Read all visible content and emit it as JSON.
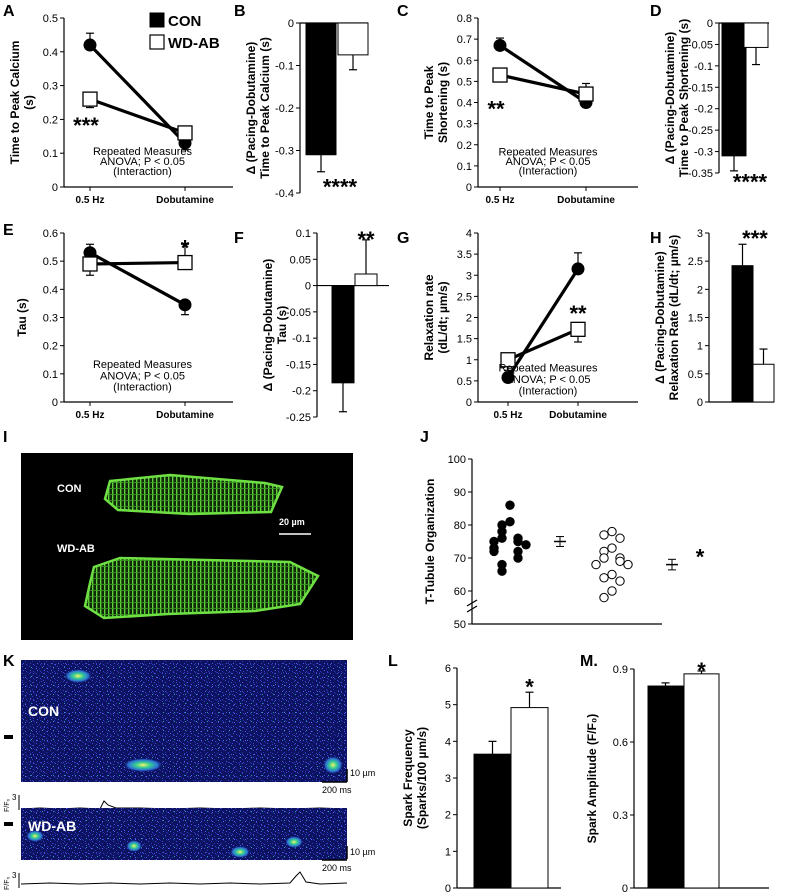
{
  "figure": {
    "legend": [
      {
        "label": "CON",
        "fill": "#000000"
      },
      {
        "label": "WD-AB",
        "fill": "#ffffff"
      }
    ]
  },
  "chart_data": [
    {
      "panel": "A",
      "type": "line",
      "ylabel": [
        "Time to Peak Calcium",
        "(s)"
      ],
      "ylim": [
        0,
        0.5
      ],
      "yticks": [
        "0",
        "0.1",
        "0.2",
        "0.3",
        "0.4",
        "0.5"
      ],
      "categories": [
        "0.5 Hz",
        "Dobutamine"
      ],
      "series": [
        {
          "name": "CON",
          "values": [
            0.42,
            0.13
          ],
          "errors": [
            0.035,
            0.02
          ]
        },
        {
          "name": "WD-AB",
          "values": [
            0.26,
            0.16
          ],
          "errors": [
            0.025,
            0.02
          ]
        }
      ],
      "annotations": [
        {
          "text": "***",
          "x": "0.5 Hz",
          "y": 0.19
        },
        {
          "text": "Repeated Measures",
          "x": "mid",
          "y": 0.095
        },
        {
          "text": "ANOVA; P < 0.05",
          "x": "mid",
          "y": 0.065
        },
        {
          "text": "(Interaction)",
          "x": "mid",
          "y": 0.035
        }
      ]
    },
    {
      "panel": "B",
      "type": "bar",
      "ylabel": [
        "Δ (Pacing-Dobutamine)",
        "Time to Peak Calcium (s)"
      ],
      "ylim": [
        -0.4,
        0
      ],
      "yticks": [
        "0",
        "-0.1",
        "-0.2",
        "-0.3",
        "-0.4"
      ],
      "series": [
        {
          "name": "CON",
          "values": [
            -0.31
          ],
          "errors": [
            0.04
          ]
        },
        {
          "name": "WD-AB",
          "values": [
            -0.075
          ],
          "errors": [
            0.035
          ]
        }
      ],
      "annotations": [
        {
          "text": "****",
          "x": "CON",
          "y": -0.38
        }
      ]
    },
    {
      "panel": "C",
      "type": "line",
      "ylabel": [
        "Time to Peak",
        "Shortening (s)"
      ],
      "ylim": [
        0,
        0.8
      ],
      "yticks": [
        "0",
        "0.1",
        "0.2",
        "0.3",
        "0.4",
        "0.5",
        "0.6",
        "0.7",
        "0.8"
      ],
      "categories": [
        "0.5 Hz",
        "Dobutamine"
      ],
      "series": [
        {
          "name": "CON",
          "values": [
            0.67,
            0.4
          ],
          "errors": [
            0.035,
            0.02
          ]
        },
        {
          "name": "WD-AB",
          "values": [
            0.53,
            0.44
          ],
          "errors": [
            0.03,
            0.05
          ]
        }
      ],
      "annotations": [
        {
          "text": "**",
          "x": "0.5 Hz",
          "y": 0.38
        },
        {
          "text": "Repeated Measures",
          "x": "mid",
          "y": 0.15
        },
        {
          "text": "ANOVA; P < 0.05",
          "x": "mid",
          "y": 0.105
        },
        {
          "text": "(Interaction)",
          "x": "mid",
          "y": 0.06
        }
      ]
    },
    {
      "panel": "D",
      "type": "bar",
      "ylabel": [
        "Δ (Pacing-Dobutamine)",
        "Time to Peak Shortening (s)"
      ],
      "ylim": [
        -0.35,
        0
      ],
      "yticks": [
        "0",
        "-0.05",
        "-0.1",
        "-0.15",
        "-0.2",
        "-0.25",
        "-0.3",
        "-0.35"
      ],
      "series": [
        {
          "name": "CON",
          "values": [
            -0.31
          ],
          "errors": [
            0.035
          ]
        },
        {
          "name": "WD-AB",
          "values": [
            -0.057
          ],
          "errors": [
            0.04
          ]
        }
      ],
      "annotations": [
        {
          "text": "****",
          "x": "CON",
          "y": -0.365
        }
      ]
    },
    {
      "panel": "E",
      "type": "line",
      "ylabel": [
        "Tau (s)"
      ],
      "ylim": [
        0,
        0.6
      ],
      "yticks": [
        "0",
        "0.1",
        "0.2",
        "0.3",
        "0.4",
        "0.5",
        "0.6"
      ],
      "categories": [
        "0.5 Hz",
        "Dobutamine"
      ],
      "series": [
        {
          "name": "CON",
          "values": [
            0.53,
            0.345
          ],
          "errors": [
            0.03,
            0.035
          ]
        },
        {
          "name": "WD-AB",
          "values": [
            0.49,
            0.495
          ],
          "errors": [
            0.04,
            0.065
          ]
        }
      ],
      "annotations": [
        {
          "text": "*",
          "x": "Dobutamine",
          "y": 0.555
        },
        {
          "text": "Repeated Measures",
          "x": "mid",
          "y": 0.12
        },
        {
          "text": "ANOVA; P < 0.05",
          "x": "mid",
          "y": 0.08
        },
        {
          "text": "(Interaction)",
          "x": "mid",
          "y": 0.04
        }
      ]
    },
    {
      "panel": "F",
      "type": "bar",
      "ylabel": [
        "Δ (Pacing-Dobutamine)",
        "Tau (s)"
      ],
      "ylim": [
        -0.25,
        0.1
      ],
      "yticks": [
        "0.1",
        "0.05",
        "0",
        "-0.05",
        "-0.1",
        "-0.15",
        "-0.2",
        "-0.25"
      ],
      "series": [
        {
          "name": "CON",
          "values": [
            -0.185
          ],
          "errors": [
            0.055
          ]
        },
        {
          "name": "WD-AB",
          "values": [
            0.022
          ],
          "errors": [
            0.065
          ]
        }
      ],
      "annotations": [
        {
          "text": "**",
          "x": "WD-AB",
          "y": 0.092
        }
      ]
    },
    {
      "panel": "G",
      "type": "line",
      "ylabel": [
        "Relaxation rate",
        "(dL/dt; µm/s)"
      ],
      "ylim": [
        0,
        4
      ],
      "yticks": [
        "0",
        "0.5",
        "1",
        "1.5",
        "2",
        "2.5",
        "3",
        "3.5",
        "4"
      ],
      "categories": [
        "0.5 Hz",
        "Dobutamine"
      ],
      "series": [
        {
          "name": "CON",
          "values": [
            0.58,
            3.15
          ],
          "errors": [
            0.1,
            0.38
          ]
        },
        {
          "name": "WD-AB",
          "values": [
            1.0,
            1.72
          ],
          "errors": [
            0.25,
            0.3
          ]
        }
      ],
      "annotations": [
        {
          "text": "**",
          "x": "Dobutamine",
          "y": 2.15
        },
        {
          "text": "Repeated Measures",
          "x": "mid",
          "y": 0.72
        },
        {
          "text": "ANOVA; P < 0.05",
          "x": "mid",
          "y": 0.45
        },
        {
          "text": "(Interaction)",
          "x": "mid",
          "y": 0.18
        }
      ]
    },
    {
      "panel": "H",
      "type": "bar",
      "ylabel": [
        "Δ (Pacing-Dobutamine)",
        "Relaxation Rate (dL/dt; µm/s)"
      ],
      "ylim": [
        0,
        3
      ],
      "yticks": [
        "0",
        "0.5",
        "1",
        "1.5",
        "2",
        "2.5",
        "3"
      ],
      "series": [
        {
          "name": "CON",
          "values": [
            2.42
          ],
          "errors": [
            0.38
          ]
        },
        {
          "name": "WD-AB",
          "values": [
            0.67
          ],
          "errors": [
            0.27
          ]
        }
      ],
      "annotations": [
        {
          "text": "***",
          "x": "WD-AB",
          "y": 2.95
        }
      ]
    },
    {
      "panel": "J",
      "type": "scatter",
      "ylabel": [
        "T-Tubule Organization"
      ],
      "ylim": [
        50,
        100
      ],
      "yticks": [
        "50",
        "60",
        "70",
        "80",
        "90",
        "100"
      ],
      "series": [
        {
          "name": "CON",
          "values": [
            86,
            81,
            80,
            78,
            76,
            76,
            75,
            75,
            74,
            73,
            72,
            72,
            70,
            68,
            66
          ],
          "mean": 75,
          "sem": 1.5
        },
        {
          "name": "WD-AB",
          "values": [
            78,
            77,
            76,
            73,
            72,
            70,
            70,
            69,
            68,
            68,
            65,
            64,
            63,
            60,
            58
          ],
          "mean": 68,
          "sem": 1.6
        }
      ],
      "annotations": [
        {
          "text": "*",
          "x": "WD-AB",
          "y": 71
        }
      ]
    },
    {
      "panel": "L",
      "type": "bar",
      "ylabel": [
        "Spark Frequency",
        "(Sparks/100 µm/s)"
      ],
      "ylim": [
        0,
        6
      ],
      "yticks": [
        "0",
        "1",
        "2",
        "3",
        "4",
        "5",
        "6"
      ],
      "series": [
        {
          "name": "CON",
          "values": [
            3.65
          ],
          "errors": [
            0.35
          ]
        },
        {
          "name": "WD-AB",
          "values": [
            4.92
          ],
          "errors": [
            0.42
          ]
        }
      ],
      "annotations": [
        {
          "text": "*",
          "x": "WD-AB",
          "y": 5.55
        }
      ]
    },
    {
      "panel": "M.",
      "type": "bar",
      "ylabel": [
        "Spark Amplitude (F/F₀)"
      ],
      "ylim": [
        0,
        0.9
      ],
      "yticks": [
        "0",
        "0.3",
        "0.6",
        "0.9"
      ],
      "series": [
        {
          "name": "CON",
          "values": [
            0.83
          ],
          "errors": [
            0.013
          ]
        },
        {
          "name": "WD-AB",
          "values": [
            0.88
          ],
          "errors": [
            0.012
          ]
        }
      ],
      "annotations": [
        {
          "text": "*",
          "x": "WD-AB",
          "y": 0.905
        }
      ]
    }
  ],
  "image_panels": {
    "I": {
      "labels": [
        "CON",
        "WD-AB"
      ],
      "scale": "20 µm"
    },
    "K": {
      "labels": [
        "CON",
        "WD-AB"
      ],
      "scale_y": "10 µm",
      "scale_x": "200 ms",
      "trace_label": "F/F₀",
      "trace_value": "3"
    }
  }
}
